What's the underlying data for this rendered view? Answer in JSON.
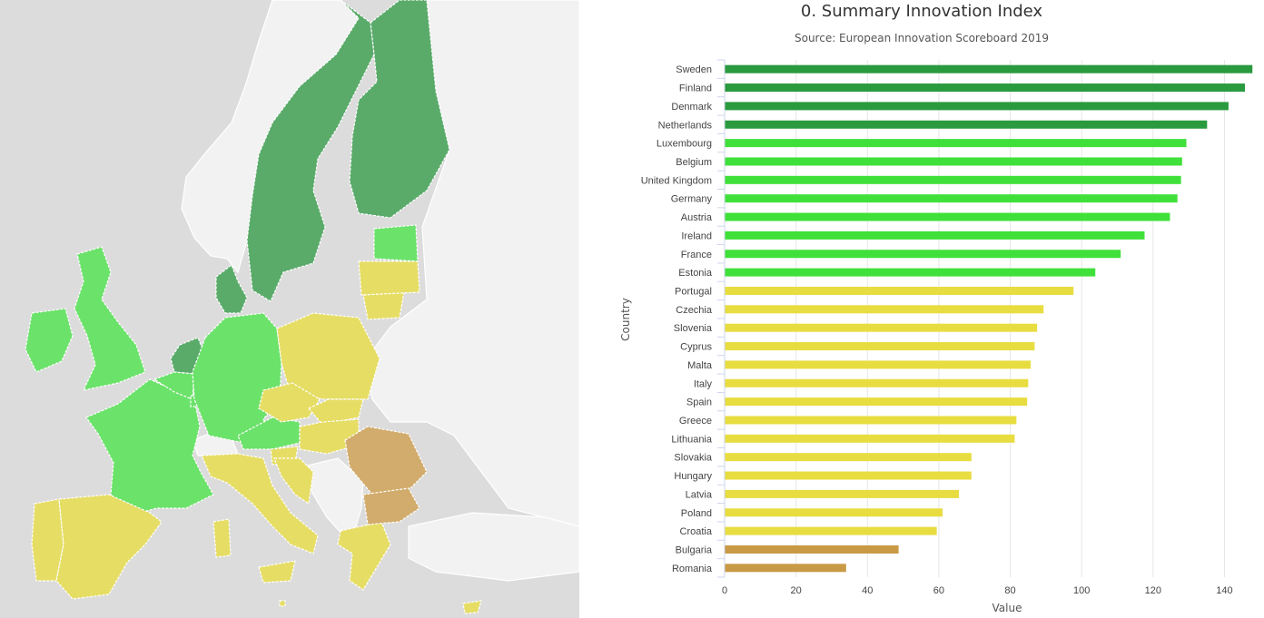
{
  "chart_data": {
    "type": "bar",
    "orientation": "horizontal",
    "title": "0. Summary Innovation Index",
    "subtitle": "Source: European Innovation Scoreboard 2019",
    "xlabel": "Value",
    "ylabel": "Country",
    "xlim": [
      0,
      147
    ],
    "xticks": [
      0,
      20,
      40,
      60,
      80,
      100,
      120,
      140
    ],
    "grid": "vertical",
    "categories": [
      "Sweden",
      "Finland",
      "Denmark",
      "Netherlands",
      "Luxembourg",
      "Belgium",
      "United Kingdom",
      "Germany",
      "Austria",
      "Ireland",
      "France",
      "Estonia",
      "Portugal",
      "Czechia",
      "Slovenia",
      "Cyprus",
      "Malta",
      "Italy",
      "Spain",
      "Greece",
      "Lithuania",
      "Slovakia",
      "Hungary",
      "Latvia",
      "Poland",
      "Croatia",
      "Bulgaria",
      "Romania"
    ],
    "values": [
      147.7,
      145.6,
      141.0,
      135.0,
      129.2,
      128.0,
      127.7,
      126.7,
      124.6,
      117.5,
      110.8,
      103.7,
      97.6,
      89.2,
      87.4,
      86.7,
      85.6,
      84.9,
      84.6,
      81.6,
      81.1,
      69.0,
      69.0,
      65.5,
      60.9,
      59.3,
      48.6,
      33.9
    ],
    "groups": [
      "leader",
      "leader",
      "leader",
      "leader",
      "strong",
      "strong",
      "strong",
      "strong",
      "strong",
      "strong",
      "strong",
      "strong",
      "moderate",
      "moderate",
      "moderate",
      "moderate",
      "moderate",
      "moderate",
      "moderate",
      "moderate",
      "moderate",
      "moderate",
      "moderate",
      "moderate",
      "moderate",
      "moderate",
      "modest",
      "modest"
    ],
    "colors": {
      "leader": "#2a9a3e",
      "strong": "#40e03a",
      "moderate": "#e8dd40",
      "modest": "#c99a45"
    }
  },
  "map": {
    "colors": {
      "background": "#dcdcdc",
      "non_eu": "#f2f2f2",
      "leader": "#5aab6a",
      "strong": "#6be26a",
      "moderate": "#e6dd65",
      "modest": "#d2ac6c",
      "border": "#ffffff"
    }
  }
}
